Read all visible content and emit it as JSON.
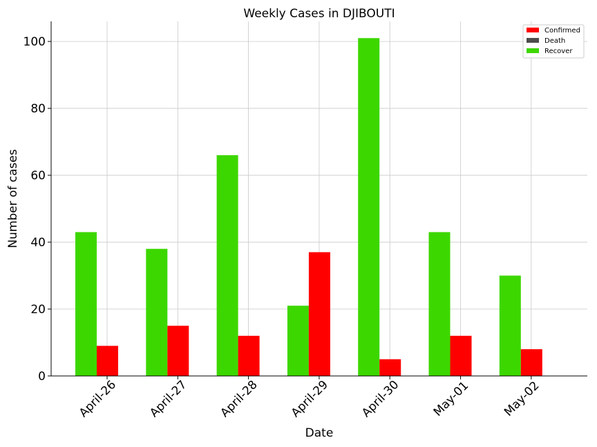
{
  "chart_data": {
    "type": "bar",
    "title": "Weekly Cases in DJIBOUTI",
    "xlabel": "Date",
    "ylabel": "Number of cases",
    "categories": [
      "April-26",
      "April-27",
      "April-28",
      "April-29",
      "April-30",
      "May-01",
      "May-02"
    ],
    "series": [
      {
        "name": "Confirmed",
        "color": "#ff0000",
        "values": [
          9,
          15,
          12,
          37,
          5,
          12,
          8
        ]
      },
      {
        "name": "Death",
        "color": "#4d4d4d",
        "values": [
          0,
          0,
          0,
          0,
          0,
          0,
          0
        ]
      },
      {
        "name": "Recover",
        "color": "#3dd700",
        "values": [
          43,
          38,
          66,
          21,
          101,
          43,
          30
        ]
      }
    ],
    "ylim": [
      0,
      106
    ],
    "yticks": [
      0,
      20,
      40,
      60,
      80,
      100
    ],
    "grid": true,
    "legend_position": "top-right"
  }
}
